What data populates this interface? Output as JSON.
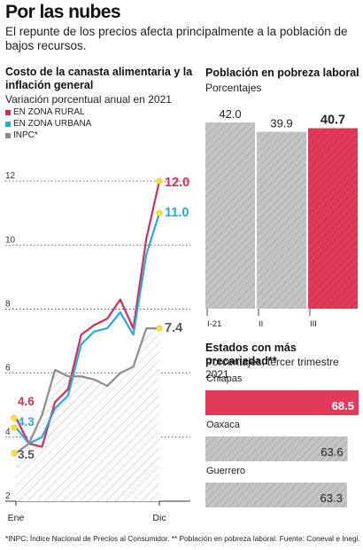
{
  "header": {
    "title": "Por las nubes",
    "subtitle": "El repunte de los precios afecta principalmente a la población de bajos recursos."
  },
  "colors": {
    "rural": "#d42f52",
    "urbana": "#2aa8e0",
    "inpc": "#8c8c8c",
    "gray_fill": "#b8b8b8",
    "highlight": "#e23b5a",
    "marker": "#f5e33a"
  },
  "line_panel": {
    "title": "Costo de la canasta alimentaria y la inflación general",
    "subtitle": "Variación porcentual anual en 2021",
    "legend": [
      "EN ZONA RURAL",
      "EN ZONA URBANA",
      "INPC*"
    ]
  },
  "bar_panel": {
    "title": "Población en pobreza laboral",
    "subtitle": "Porcentajes"
  },
  "states_panel": {
    "title": "Estados con más precariedad**",
    "subtitle": "Porcentajes, tercer trimestre 2021"
  },
  "footnote": "*INPC: Índice Nacional de Precios al Consumidor. ** Población en pobreza laboral. Fuente: Coneval e Inegi.",
  "chart_data": [
    {
      "type": "line",
      "title": "Costo de la canasta alimentaria y la inflación general",
      "subtitle": "Variación porcentual anual en 2021",
      "x_tick_labels": [
        "Ene",
        "Dic"
      ],
      "y_ticks": [
        2,
        4,
        6,
        8,
        10,
        12
      ],
      "ylim": [
        2,
        13
      ],
      "series": [
        {
          "name": "EN ZONA RURAL",
          "values": [
            4.6,
            3.8,
            3.7,
            5.1,
            5.5,
            7.2,
            7.5,
            7.7,
            8.3,
            7.4,
            10.2,
            12.0
          ],
          "start_label": "4.6",
          "end_label": "12.0"
        },
        {
          "name": "EN ZONA URBANA",
          "values": [
            4.3,
            3.8,
            4.0,
            4.9,
            5.3,
            6.9,
            7.3,
            7.4,
            7.9,
            7.2,
            9.7,
            11.0
          ],
          "start_label": "4.3",
          "end_label": "11.0"
        },
        {
          "name": "INPC*",
          "values": [
            3.5,
            3.8,
            4.7,
            6.1,
            5.9,
            5.9,
            5.8,
            5.6,
            6.0,
            6.2,
            7.4,
            7.4
          ],
          "start_label": "3.5",
          "end_label": "7.4"
        }
      ]
    },
    {
      "type": "bar",
      "title": "Población en pobreza laboral",
      "subtitle": "Porcentajes",
      "categories": [
        "I-21",
        "II",
        "III"
      ],
      "values": [
        42.0,
        39.9,
        40.7
      ],
      "labels": [
        "42.0",
        "39.9",
        "40.7"
      ],
      "highlight": "III"
    },
    {
      "type": "bar",
      "orientation": "horizontal",
      "title": "Estados con más precariedad**",
      "subtitle": "Porcentajes, tercer trimestre 2021",
      "categories": [
        "Chiapas",
        "Oaxaca",
        "Guerrero"
      ],
      "values": [
        68.5,
        63.6,
        63.3
      ],
      "labels": [
        "68.5",
        "63.6",
        "63.3"
      ],
      "highlight": "Chiapas"
    }
  ]
}
